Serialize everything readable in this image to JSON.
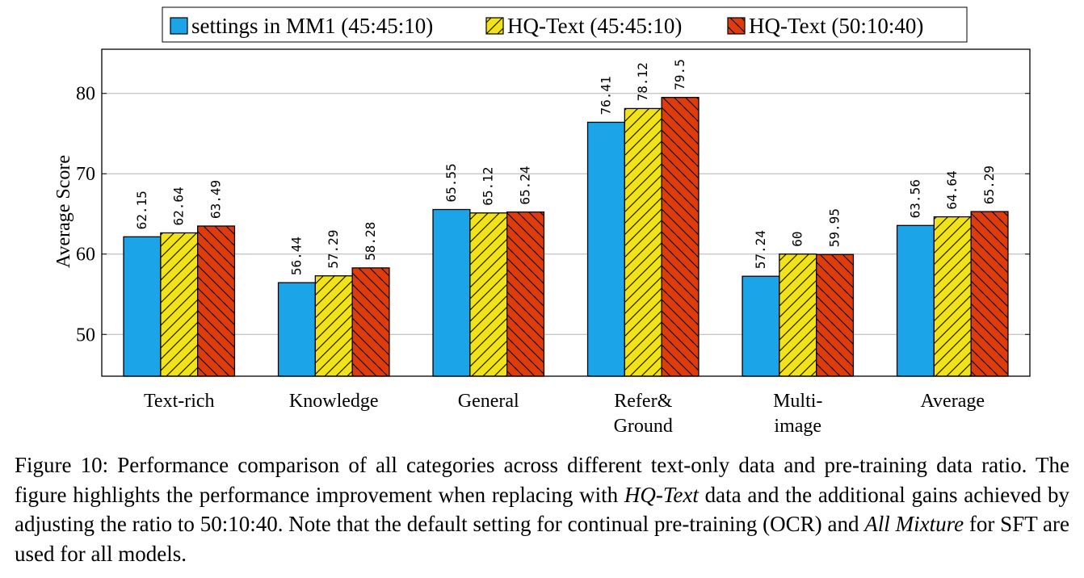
{
  "chart_data": {
    "type": "bar",
    "title": "",
    "xlabel": "",
    "ylabel": "Average Score",
    "ylim": [
      44.8,
      85.5
    ],
    "yticks": [
      50,
      60,
      70,
      80
    ],
    "grid": "horizontal",
    "legend_position": "top",
    "categories": [
      [
        "Text-rich"
      ],
      [
        "Knowledge"
      ],
      [
        "General"
      ],
      [
        "Refer&",
        "Ground"
      ],
      [
        "Multi-",
        "image"
      ],
      [
        "Average"
      ]
    ],
    "series": [
      {
        "name": "settings in MM1 (45:45:10)",
        "color": "#1ba5e8",
        "pattern": "none",
        "values": [
          62.15,
          56.44,
          65.55,
          76.41,
          57.24,
          63.56
        ],
        "labels": [
          "62.15",
          "56.44",
          "65.55",
          "76.41",
          "57.24",
          "63.56"
        ]
      },
      {
        "name": "HQ-Text (45:45:10)",
        "color": "#f2e21b",
        "pattern": "hatch-up",
        "values": [
          62.64,
          57.29,
          65.12,
          78.12,
          60,
          64.64
        ],
        "labels": [
          "62.64",
          "57.29",
          "65.12",
          "78.12",
          "60",
          "64.64"
        ]
      },
      {
        "name": "HQ-Text (50:10:40)",
        "color": "#e03c0a",
        "pattern": "hatch-down",
        "values": [
          63.49,
          58.28,
          65.24,
          79.5,
          59.95,
          65.29
        ],
        "labels": [
          "63.49",
          "58.28",
          "65.24",
          "79.5",
          "59.95",
          "65.29"
        ]
      }
    ]
  },
  "caption": {
    "prefix": "Figure 10: Performance comparison of all categories across different text-only data and pre-training data ratio. The figure highlights the performance improvement when replacing with ",
    "em1": "HQ-Text",
    "middle": " data and the additional gains achieved by adjusting the ratio to 50:10:40. Note that the default setting for continual pre-training (OCR) and ",
    "em2": "All Mixture",
    "suffix": " for SFT are used for all models."
  }
}
